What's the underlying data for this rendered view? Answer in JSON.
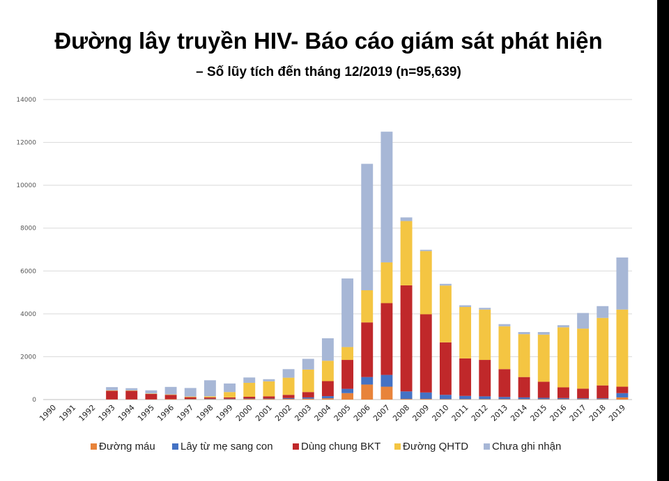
{
  "slide": {
    "title": "Đường lây truyền HIV- Báo cáo giám sát phát hiện",
    "subtitle": "– Số lũy tích đến tháng 12/2019 (n=95,639)"
  },
  "chart_data": {
    "type": "bar",
    "stacked": true,
    "title": "",
    "xlabel": "",
    "ylabel": "",
    "ylim": [
      0,
      14000
    ],
    "yticks": [
      "0",
      "2000",
      "4000",
      "6000",
      "8000",
      "10000",
      "12000",
      "14000"
    ],
    "grid": true,
    "legend_position": "bottom",
    "categories": [
      "1990",
      "1991",
      "1992",
      "1993",
      "1994",
      "1995",
      "1996",
      "1997",
      "1998",
      "1999",
      "2000",
      "2001",
      "2002",
      "2003",
      "2004",
      "2005",
      "2006",
      "2007",
      "2008",
      "2009",
      "2010",
      "2011",
      "2012",
      "2013",
      "2014",
      "2015",
      "2016",
      "2017",
      "2018",
      "2019"
    ],
    "series": [
      {
        "name": "Đường máu",
        "color": "#E8833A",
        "values": [
          0,
          0,
          0,
          10,
          10,
          10,
          20,
          20,
          20,
          20,
          30,
          30,
          30,
          40,
          60,
          300,
          700,
          600,
          30,
          30,
          20,
          20,
          20,
          20,
          20,
          20,
          20,
          20,
          20,
          100
        ]
      },
      {
        "name": "Lây từ mẹ sang con",
        "color": "#4472C4",
        "values": [
          0,
          0,
          0,
          0,
          0,
          0,
          0,
          10,
          20,
          20,
          20,
          20,
          40,
          60,
          100,
          200,
          350,
          550,
          350,
          300,
          200,
          150,
          130,
          100,
          80,
          60,
          50,
          40,
          40,
          200
        ]
      },
      {
        "name": "Dùng chung BKT",
        "color": "#C0282A",
        "values": [
          0,
          0,
          0,
          400,
          400,
          250,
          200,
          80,
          60,
          60,
          80,
          100,
          150,
          250,
          700,
          1350,
          2550,
          3350,
          4950,
          3650,
          2450,
          1750,
          1700,
          1300,
          950,
          750,
          500,
          450,
          600,
          300
        ]
      },
      {
        "name": "Đường QHTD",
        "color": "#F4C542",
        "values": [
          0,
          0,
          0,
          20,
          20,
          20,
          20,
          30,
          50,
          250,
          650,
          700,
          800,
          1050,
          950,
          600,
          1500,
          1900,
          3000,
          2950,
          2650,
          2400,
          2350,
          2000,
          2000,
          2200,
          2800,
          2800,
          3150,
          3600
        ]
      },
      {
        "name": "Chưa ghi nhận",
        "color": "#A7B7D6",
        "values": [
          0,
          0,
          0,
          150,
          100,
          150,
          350,
          400,
          750,
          400,
          250,
          100,
          400,
          500,
          1050,
          3200,
          5900,
          6100,
          170,
          60,
          80,
          80,
          80,
          100,
          100,
          120,
          100,
          730,
          550,
          2430
        ]
      }
    ]
  }
}
